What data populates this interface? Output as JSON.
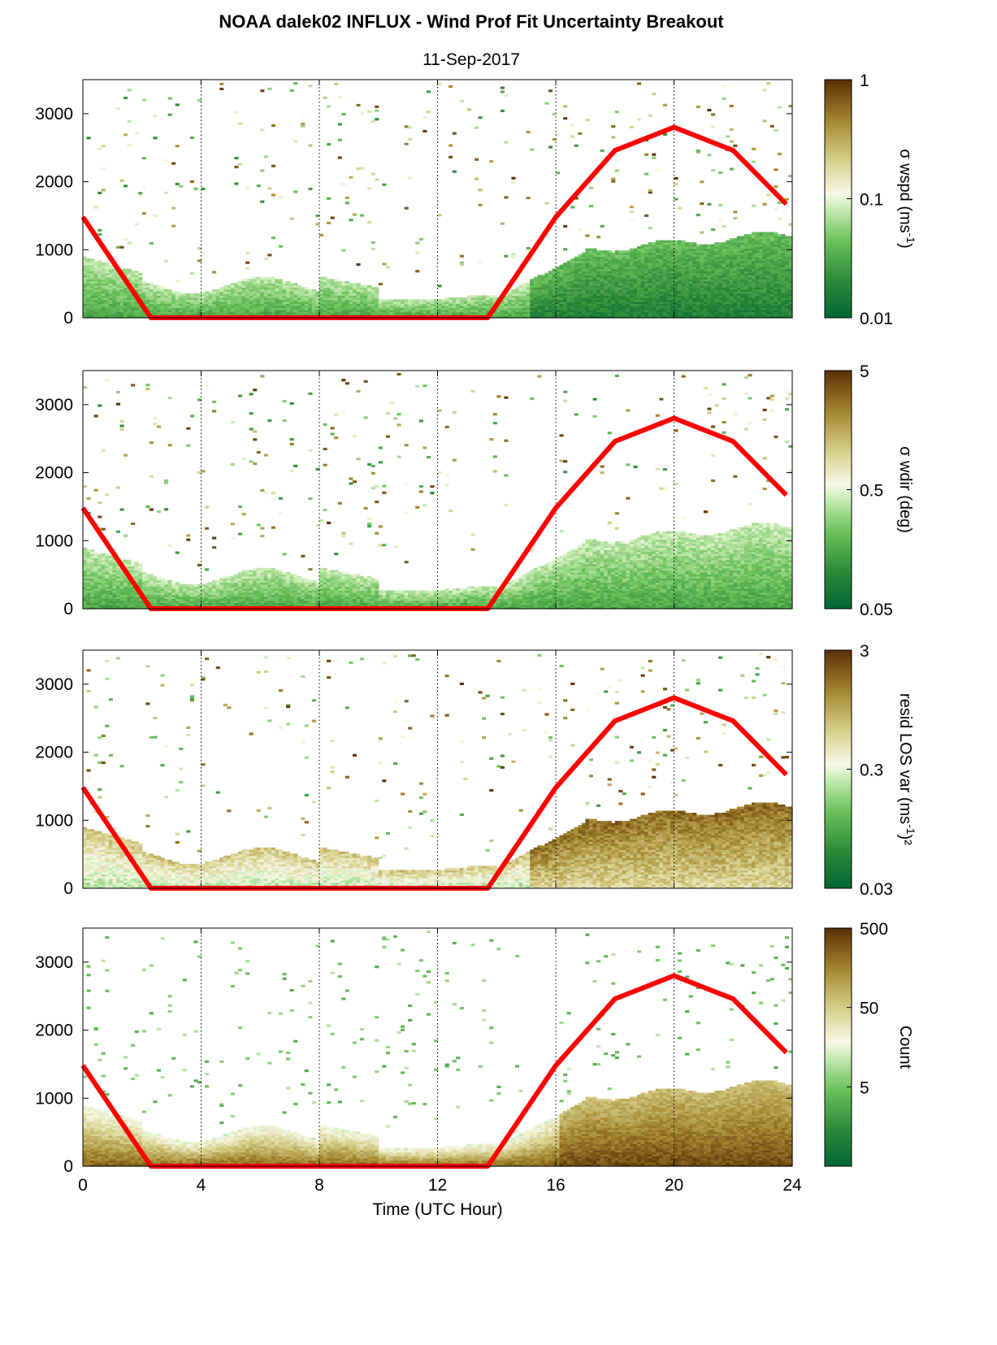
{
  "title": "NOAA dalek02 INFLUX - Wind Prof Fit Uncertainty Breakout",
  "subtitle": "11-Sep-2017",
  "colors": {
    "line": "#ff0000",
    "colormap": [
      "#006633",
      "#2e8b3a",
      "#6abf5a",
      "#c8ecb4",
      "#f6f8e6",
      "#d6d08c",
      "#a68a32",
      "#5a3005"
    ]
  },
  "chart_data": [
    {
      "type": "heatmap",
      "ylabel": "",
      "xlim": [
        0,
        24
      ],
      "ylim": [
        0,
        3500
      ],
      "yticks": [
        "0",
        "1000",
        "2000",
        "3000"
      ],
      "colorbar": {
        "label": "σ wspd (ms",
        "label_sup": "-1",
        "label_end": ")",
        "scale": "log",
        "ticks": [
          "1",
          "0.1",
          "0.01"
        ],
        "range": [
          0.01,
          1
        ]
      },
      "grid_x": [
        4,
        8,
        12,
        16,
        20
      ],
      "line_series": {
        "x": [
          0,
          2.3,
          13.7,
          16,
          18,
          20,
          22,
          23.8
        ],
        "y": [
          1480,
          0,
          0,
          1480,
          2460,
          2800,
          2460,
          1670
        ]
      }
    },
    {
      "type": "heatmap",
      "ylabel": "",
      "xlim": [
        0,
        24
      ],
      "ylim": [
        0,
        3500
      ],
      "yticks": [
        "0",
        "1000",
        "2000",
        "3000"
      ],
      "colorbar": {
        "label": "σ wdir (deg)",
        "label_sup": "",
        "label_end": "",
        "scale": "log",
        "ticks": [
          "5",
          "0.5",
          "0.05"
        ],
        "range": [
          0.05,
          5
        ]
      },
      "grid_x": [
        4,
        8,
        12,
        16,
        20
      ],
      "line_series": {
        "x": [
          0,
          2.3,
          13.7,
          16,
          18,
          20,
          22,
          23.8
        ],
        "y": [
          1480,
          0,
          0,
          1480,
          2460,
          2800,
          2460,
          1670
        ]
      }
    },
    {
      "type": "heatmap",
      "ylabel": "",
      "xlim": [
        0,
        24
      ],
      "ylim": [
        0,
        3500
      ],
      "yticks": [
        "0",
        "1000",
        "2000",
        "3000"
      ],
      "colorbar": {
        "label": "resid LOS var (ms",
        "label_sup": "-1",
        "label_end": ")²",
        "scale": "log",
        "ticks": [
          "3",
          "0.3",
          "0.03"
        ],
        "range": [
          0.03,
          3
        ]
      },
      "grid_x": [
        4,
        8,
        12,
        16,
        20
      ],
      "line_series": {
        "x": [
          0,
          2.3,
          13.7,
          16,
          18,
          20,
          22,
          23.8
        ],
        "y": [
          1480,
          0,
          0,
          1480,
          2460,
          2800,
          2460,
          1670
        ]
      }
    },
    {
      "type": "heatmap",
      "ylabel": "",
      "xlabel": "Time (UTC Hour)",
      "xlim": [
        0,
        24
      ],
      "ylim": [
        0,
        3500
      ],
      "xticks": [
        "0",
        "4",
        "8",
        "12",
        "16",
        "20",
        "24"
      ],
      "yticks": [
        "0",
        "1000",
        "2000",
        "3000"
      ],
      "colorbar": {
        "label": "Count",
        "label_sup": "",
        "label_end": "",
        "scale": "log",
        "ticks": [
          "500",
          "50",
          "5"
        ],
        "range": [
          0.5,
          500
        ]
      },
      "grid_x": [
        4,
        8,
        12,
        16,
        20
      ],
      "line_series": {
        "x": [
          0,
          2.3,
          13.7,
          16,
          18,
          20,
          22,
          23.8
        ],
        "y": [
          1480,
          0,
          0,
          1480,
          2460,
          2800,
          2460,
          1670
        ]
      }
    }
  ]
}
